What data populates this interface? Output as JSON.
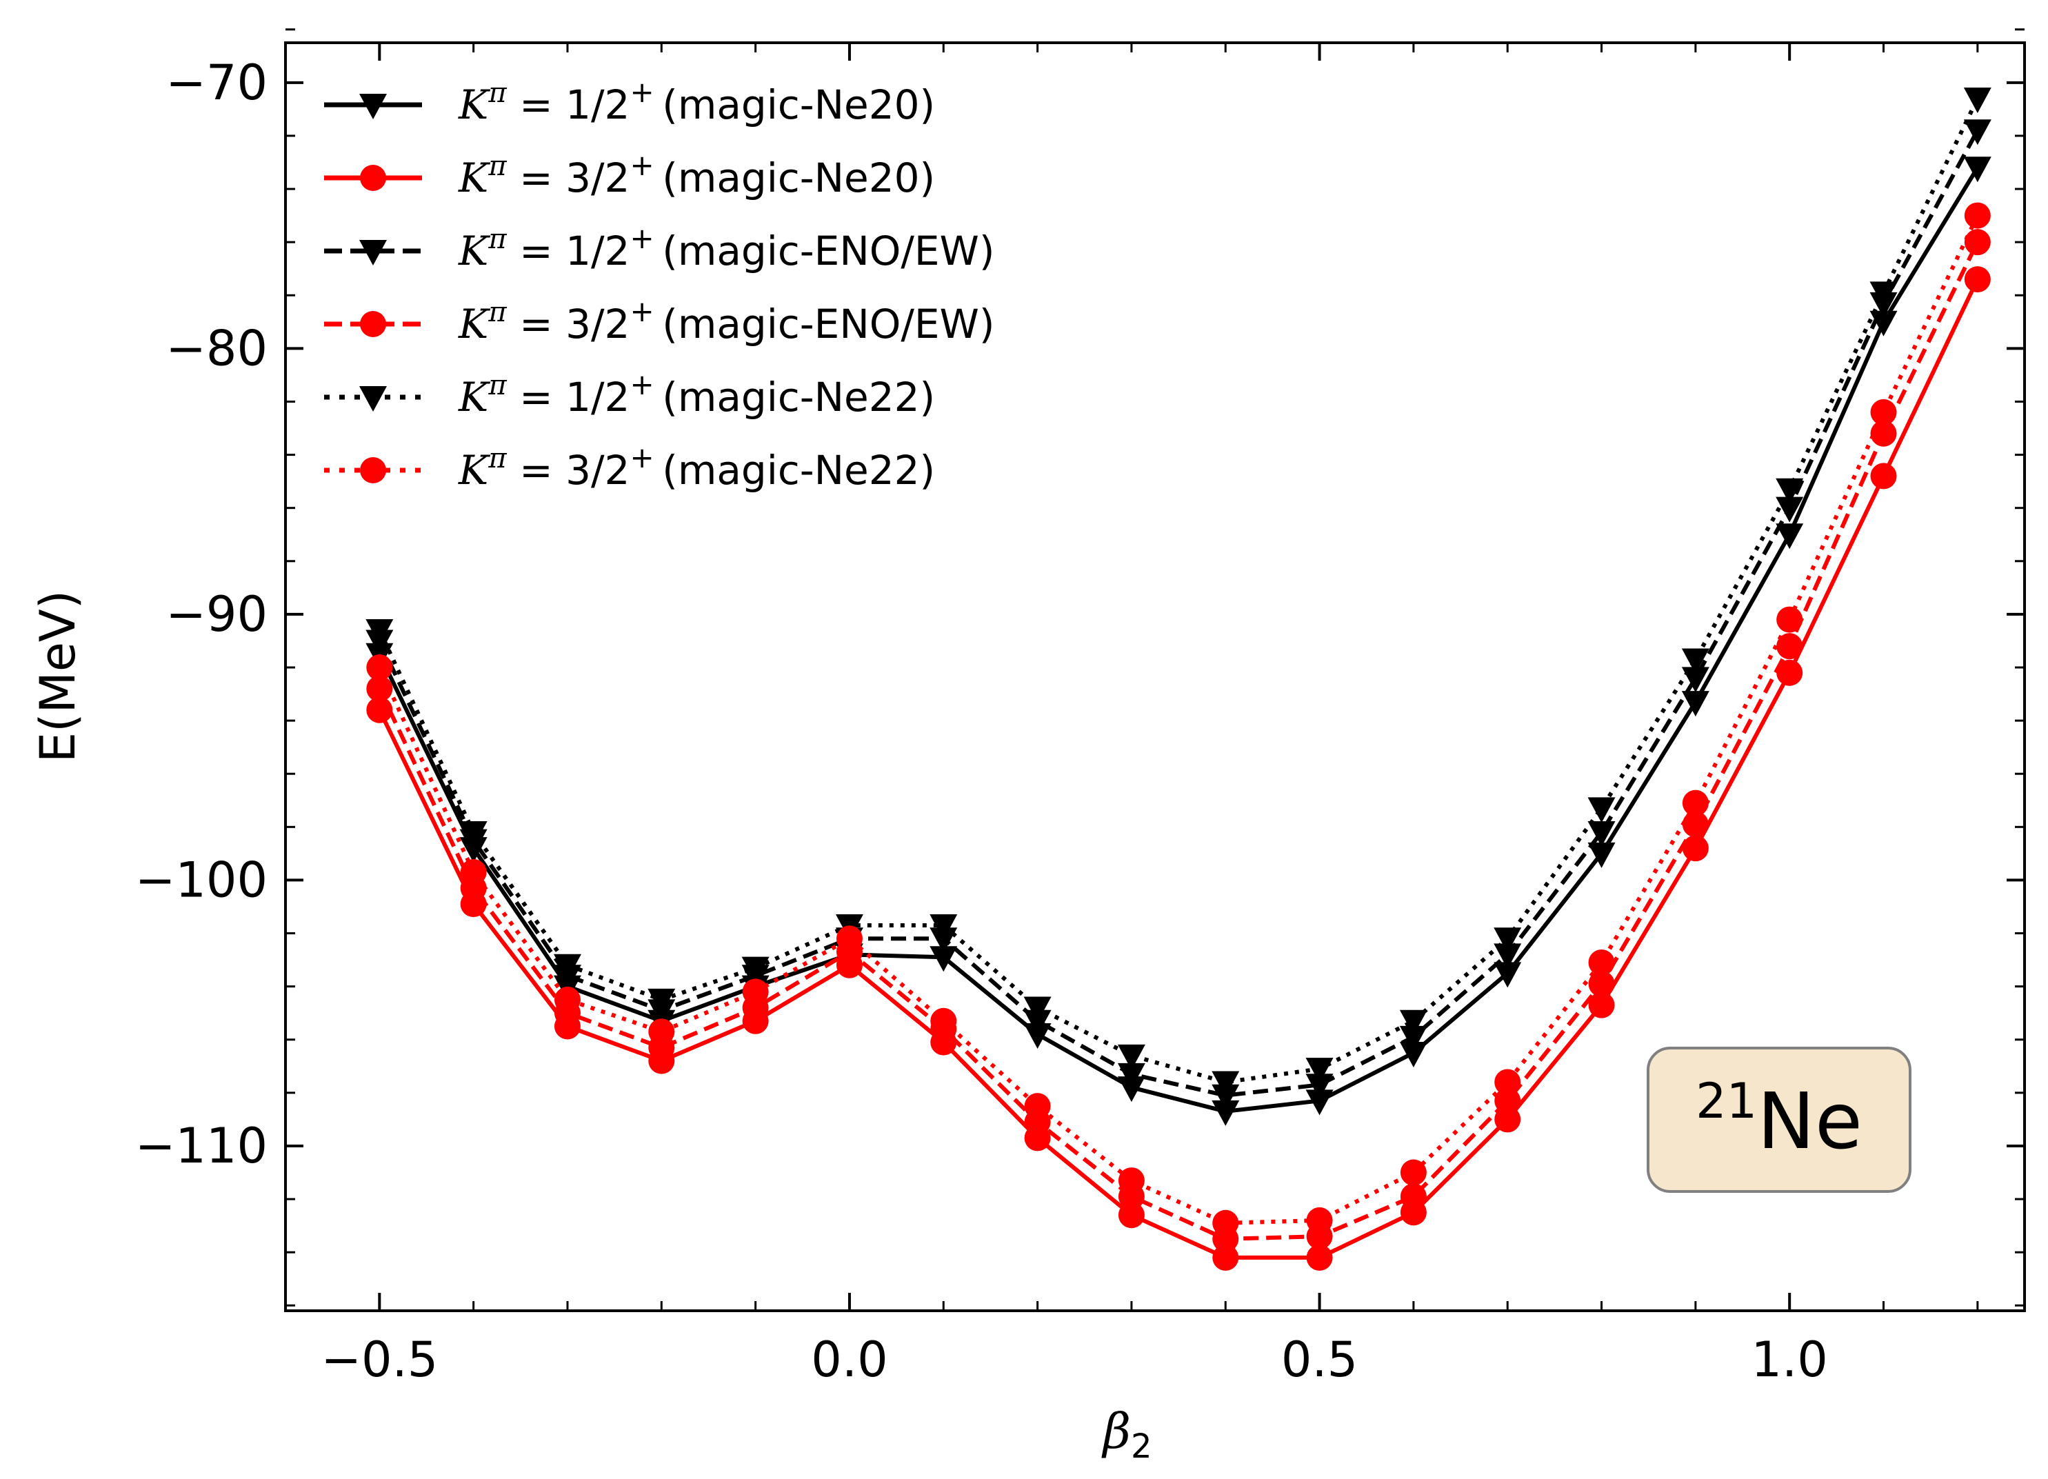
{
  "chart_data": {
    "type": "line",
    "xlabel": "β",
    "xlabel_sub": "2",
    "ylabel": "E(MeV)",
    "xlim": [
      -0.6,
      1.25
    ],
    "ylim": [
      -116.2,
      -68.5
    ],
    "xticks": [
      -0.5,
      0.0,
      0.5,
      1.0
    ],
    "xtick_labels": [
      "−0.5",
      "0.0",
      "0.5",
      "1.0"
    ],
    "yticks": [
      -110,
      -100,
      -90,
      -80,
      -70
    ],
    "ytick_labels": [
      "−110",
      "−100",
      "−90",
      "−80",
      "−70"
    ],
    "x": [
      -0.5,
      -0.4,
      -0.3,
      -0.2,
      -0.1,
      0.0,
      0.1,
      0.2,
      0.3,
      0.4,
      0.5,
      0.6,
      0.7,
      0.8,
      0.9,
      1.0,
      1.1,
      1.2
    ],
    "series": [
      {
        "name": "Kπ = 1/2+ (magic-Ne20)",
        "legend_text": "(magic-Ne20)",
        "k": "1/2",
        "color": "#000000",
        "linestyle": "solid",
        "marker": "triangle-down",
        "values": [
          -91.5,
          -98.8,
          -104.0,
          -105.3,
          -104.0,
          -102.8,
          -102.9,
          -105.8,
          -107.8,
          -108.7,
          -108.3,
          -106.5,
          -103.5,
          -99.0,
          -93.3,
          -87.0,
          -79.0,
          -73.2
        ]
      },
      {
        "name": "Kπ = 3/2+ (magic-Ne20)",
        "legend_text": "(magic-Ne20)",
        "k": "3/2",
        "color": "#ff0000",
        "linestyle": "solid",
        "marker": "circle",
        "values": [
          -93.6,
          -100.9,
          -105.5,
          -106.8,
          -105.3,
          -103.2,
          -106.1,
          -109.7,
          -112.6,
          -114.2,
          -114.2,
          -112.5,
          -109.0,
          -104.7,
          -98.8,
          -92.2,
          -84.8,
          -77.4
        ]
      },
      {
        "name": "Kπ = 1/2+ (magic-ENO/EW)",
        "legend_text": "(magic-ENO/EW)",
        "k": "1/2",
        "color": "#000000",
        "linestyle": "dashed",
        "marker": "triangle-down",
        "values": [
          -91.0,
          -98.5,
          -103.6,
          -104.9,
          -103.6,
          -102.2,
          -102.2,
          -105.3,
          -107.3,
          -108.1,
          -107.7,
          -105.9,
          -102.8,
          -98.2,
          -92.4,
          -86.0,
          -78.3,
          -71.8
        ]
      },
      {
        "name": "Kπ = 3/2+ (magic-ENO/EW)",
        "legend_text": "(magic-ENO/EW)",
        "k": "3/2",
        "color": "#ff0000",
        "linestyle": "dashed",
        "marker": "circle",
        "values": [
          -92.8,
          -100.3,
          -105.0,
          -106.3,
          -104.8,
          -102.7,
          -105.6,
          -109.1,
          -111.9,
          -113.5,
          -113.4,
          -111.9,
          -108.3,
          -103.9,
          -97.9,
          -91.2,
          -83.2,
          -76.0
        ]
      },
      {
        "name": "Kπ = 1/2+ (magic-Ne22)",
        "legend_text": "(magic-Ne22)",
        "k": "1/2",
        "color": "#000000",
        "linestyle": "dotted",
        "marker": "triangle-down",
        "values": [
          -90.6,
          -98.2,
          -103.2,
          -104.5,
          -103.3,
          -101.7,
          -101.7,
          -104.8,
          -106.6,
          -107.6,
          -107.1,
          -105.3,
          -102.2,
          -97.3,
          -91.7,
          -85.3,
          -77.9,
          -70.6
        ]
      },
      {
        "name": "Kπ = 3/2+ (magic-Ne22)",
        "legend_text": "(magic-Ne22)",
        "k": "3/2",
        "color": "#ff0000",
        "linestyle": "dotted",
        "marker": "circle",
        "values": [
          -92.0,
          -99.7,
          -104.5,
          -105.7,
          -104.2,
          -102.2,
          -105.3,
          -108.5,
          -111.3,
          -112.9,
          -112.8,
          -111.0,
          -107.6,
          -103.1,
          -97.1,
          -90.2,
          -82.4,
          -75.0
        ]
      }
    ],
    "legend_location": "upper-left",
    "annotation": {
      "mass_number": "21",
      "element": "Ne",
      "location": "lower-right",
      "background": "#f5e6cc",
      "border": "#808080"
    }
  }
}
